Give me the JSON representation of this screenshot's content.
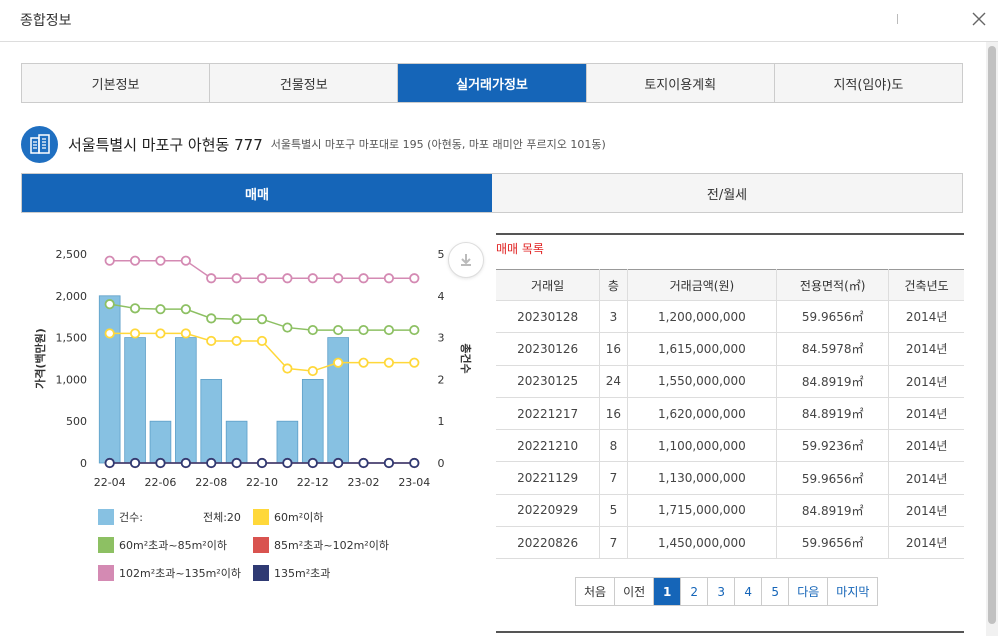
{
  "window": {
    "title": "종합정보"
  },
  "tabs": [
    {
      "label": "기본정보",
      "active": false
    },
    {
      "label": "건물정보",
      "active": false
    },
    {
      "label": "실거래가정보",
      "active": true
    },
    {
      "label": "토지이용계획",
      "active": false
    },
    {
      "label": "지적(임야)도",
      "active": false
    }
  ],
  "address": {
    "main": "서울특별시 마포구 아현동 777",
    "road": "서울특별시 마포구 마포대로 195 (아현동, 마포 래미안 푸르지오 101동)"
  },
  "subtabs": [
    {
      "label": "매매",
      "active": true
    },
    {
      "label": "전/월세",
      "active": false
    }
  ],
  "colors": {
    "primary": "#1565b8",
    "bar": "#87c1e2",
    "s60": "#ffd83a",
    "s60_85": "#8dc063",
    "s85_102": "#d9534f",
    "s102_135": "#d48ab3",
    "s135": "#2f3a73"
  },
  "chart_data": {
    "type": "bar",
    "ylabel": "가격(백만원)",
    "y2label": "총건수",
    "ylim": [
      0,
      2500
    ],
    "y2lim": [
      0,
      5
    ],
    "yticks": [
      "2,500",
      "2,000",
      "1,500",
      "1,000",
      "500",
      "0"
    ],
    "y2ticks": [
      "5",
      "4",
      "3",
      "2",
      "1",
      "0"
    ],
    "xticks": [
      "22-04",
      "22-06",
      "22-08",
      "22-10",
      "22-12",
      "23-02",
      "23-04"
    ],
    "months": [
      "22-04",
      "22-05",
      "22-06",
      "22-07",
      "22-08",
      "22-09",
      "22-10",
      "22-11",
      "22-12",
      "23-01",
      "23-02",
      "23-03",
      "23-04"
    ],
    "counts": [
      4.0,
      3.0,
      1.0,
      3.0,
      2.0,
      1.0,
      0,
      1.0,
      2.0,
      3.0,
      0,
      0,
      0
    ],
    "series": [
      {
        "name": "60m²이하",
        "values": [
          1550,
          1550,
          1550,
          1550,
          1460,
          1460,
          1460,
          1130,
          1100,
          1200,
          1200,
          1200,
          1200
        ]
      },
      {
        "name": "60m²초과~85m²이하",
        "values": [
          1900,
          1850,
          1840,
          1840,
          1730,
          1720,
          1720,
          1620,
          1590,
          1590,
          1590,
          1590,
          1590
        ]
      },
      {
        "name": "85m²초과~102m²이하",
        "values": [
          0,
          0,
          0,
          0,
          0,
          0,
          0,
          0,
          0,
          0,
          0,
          0,
          0
        ]
      },
      {
        "name": "102m²초과~135m²이하",
        "values": [
          2420,
          2420,
          2420,
          2420,
          2210,
          2210,
          2210,
          2210,
          2210,
          2210,
          2210,
          2210,
          2210
        ]
      },
      {
        "name": "135m²초과",
        "values": [
          0,
          0,
          0,
          0,
          0,
          0,
          0,
          0,
          0,
          0,
          0,
          0,
          0
        ]
      }
    ]
  },
  "legend": {
    "count_label": "건수:",
    "total_label": "전체:20",
    "items": [
      {
        "label": "60m²이하"
      },
      {
        "label": "60m²초과~85m²이하"
      },
      {
        "label": "85m²초과~102m²이하"
      },
      {
        "label": "102m²초과~135m²이하"
      },
      {
        "label": "135m²초과"
      }
    ]
  },
  "list": {
    "title": "매매 목록",
    "headers": [
      "거래일",
      "층",
      "거래금액(원)",
      "전용면적(㎡)",
      "건축년도"
    ],
    "rows": [
      [
        "20230128",
        "3",
        "1,200,000,000",
        "59.9656㎡",
        "2014년"
      ],
      [
        "20230126",
        "16",
        "1,615,000,000",
        "84.5978㎡",
        "2014년"
      ],
      [
        "20230125",
        "24",
        "1,550,000,000",
        "84.8919㎡",
        "2014년"
      ],
      [
        "20221217",
        "16",
        "1,620,000,000",
        "84.8919㎡",
        "2014년"
      ],
      [
        "20221210",
        "8",
        "1,100,000,000",
        "59.9236㎡",
        "2014년"
      ],
      [
        "20221129",
        "7",
        "1,130,000,000",
        "59.9656㎡",
        "2014년"
      ],
      [
        "20220929",
        "5",
        "1,715,000,000",
        "84.8919㎡",
        "2014년"
      ],
      [
        "20220826",
        "7",
        "1,450,000,000",
        "59.9656㎡",
        "2014년"
      ]
    ]
  },
  "pager": {
    "first": "처음",
    "prev": "이전",
    "pages": [
      "1",
      "2",
      "3",
      "4",
      "5"
    ],
    "current": "1",
    "next": "다음",
    "last": "마지막"
  }
}
